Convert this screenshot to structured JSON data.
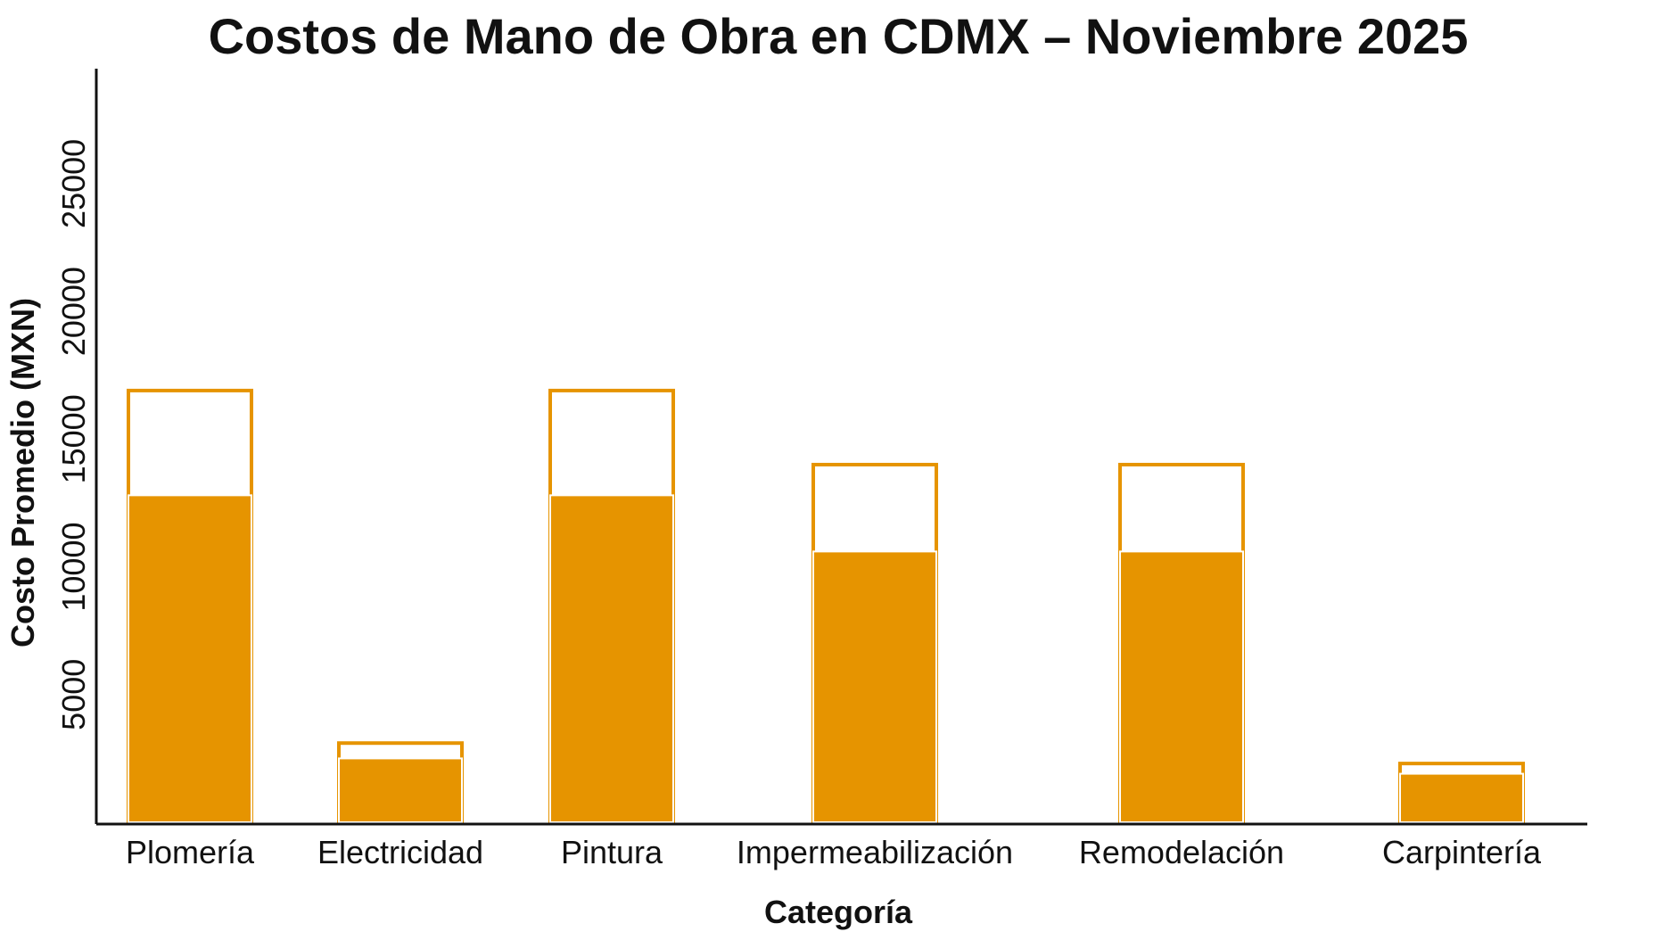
{
  "chart_data": {
    "type": "bar",
    "title": "Costos de Mano de Obra en CDMX – Noviembre 2025",
    "xlabel": "Categoría",
    "ylabel": "Costo Promedio (MXN)",
    "categories": [
      "Plomería",
      "Electricidad",
      "Pintura",
      "Impermeabilización",
      "Remodelación",
      "Carpintería"
    ],
    "series": [
      {
        "values": [
          12800,
          2500,
          12800,
          10600,
          10600,
          1900
        ]
      },
      {
        "values": [
          16900,
          3100,
          16900,
          14000,
          14000,
          2300
        ]
      }
    ],
    "ylim": [
      0,
      29500
    ],
    "yticks": [
      5000,
      10000,
      15000,
      20000,
      25000
    ],
    "grid": false,
    "legend": "none",
    "colors": {
      "bar_fill": "#E69400",
      "bar_outline": "#E69400",
      "axis": "#111111",
      "background": "#ffffff"
    }
  }
}
